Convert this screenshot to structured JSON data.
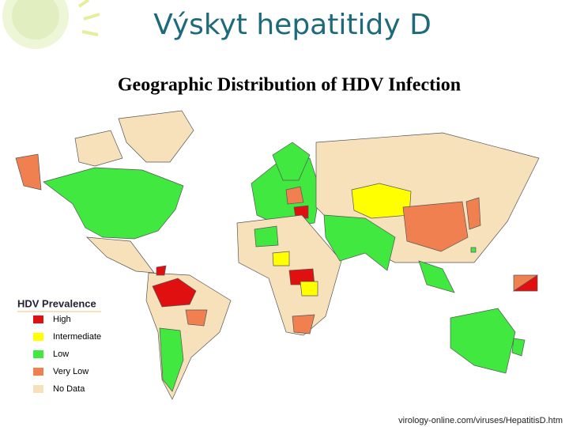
{
  "slide": {
    "title": "Výskyt hepatitidy D"
  },
  "map": {
    "title": "Geographic Distribution of HDV Infection",
    "legend": {
      "title": "HDV Prevalence",
      "items": [
        {
          "name": "High",
          "color": "#e01010"
        },
        {
          "name": "Intermediate",
          "color": "#ffff00"
        },
        {
          "name": "Low",
          "color": "#40e840"
        },
        {
          "name": "Very Low",
          "color": "#f08050"
        },
        {
          "name": "No Data",
          "color": "#f7e1bb"
        }
      ]
    }
  },
  "source": "virology-online.com/viruses/HepatitisD.htm"
}
